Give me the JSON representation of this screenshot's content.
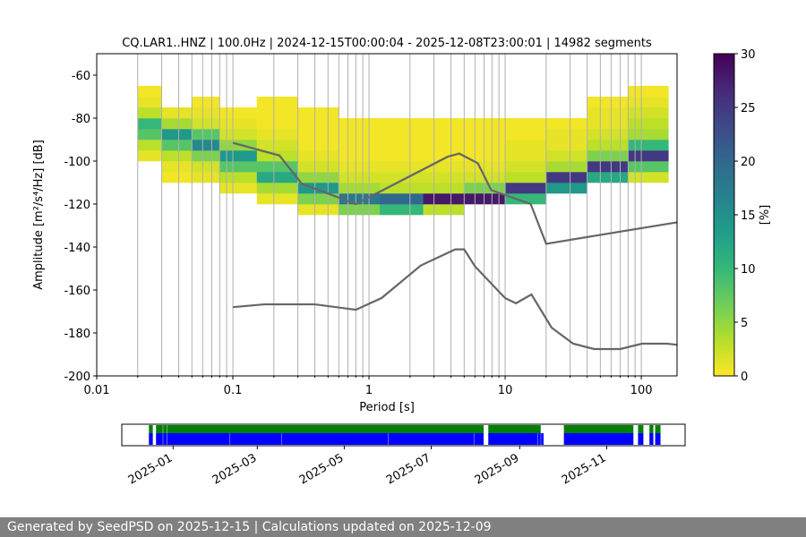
{
  "chart_data": [
    {
      "type": "heatmap",
      "title": "CQ.LAR1..HNZ | 100.0Hz | 2024-12-15T00:00:04 - 2025-12-08T23:00:01 | 14982 segments",
      "xlabel": "Period [s]",
      "ylabel": "Amplitude [m²/s⁴/Hz] [dB]",
      "log_x": true,
      "grid": "x",
      "xlim": [
        0.01,
        183
      ],
      "ylim": [
        -200,
        -50
      ],
      "xticks": [
        0.01,
        0.1,
        1,
        10,
        100
      ],
      "xminorticks": [
        0.02,
        0.03,
        0.04,
        0.05,
        0.06,
        0.07,
        0.08,
        0.09,
        0.2,
        0.3,
        0.4,
        0.5,
        0.6,
        0.7,
        0.8,
        0.9,
        2,
        3,
        4,
        5,
        6,
        7,
        8,
        9,
        20,
        30,
        40,
        50,
        60,
        70,
        80,
        90
      ],
      "yticks": [
        -200,
        -180,
        -160,
        -140,
        -120,
        -100,
        -80,
        -60
      ],
      "colormap": "viridis_r",
      "x_edges": [
        0.02,
        0.03,
        0.05,
        0.08,
        0.15,
        0.3,
        0.6,
        1.2,
        2.5,
        5,
        10,
        20,
        40,
        80,
        158
      ],
      "y_edges": [
        -125,
        -120,
        -115,
        -110,
        -105,
        -100,
        -95,
        -90,
        -85,
        -80,
        -75,
        -70,
        -65
      ],
      "z": [
        [
          null,
          null,
          null,
          null,
          null,
          1,
          6,
          10,
          3,
          null,
          null,
          null,
          null,
          null
        ],
        [
          null,
          null,
          null,
          null,
          1,
          6,
          18,
          20,
          28,
          28,
          10,
          null,
          null,
          null
        ],
        [
          null,
          null,
          null,
          1,
          4,
          14,
          4,
          3,
          3,
          6,
          25,
          14,
          null,
          null
        ],
        [
          null,
          0.5,
          1,
          3,
          12,
          5,
          2,
          2,
          2,
          2,
          3,
          25,
          12,
          2
        ],
        [
          null,
          1,
          2,
          8,
          8,
          2,
          1,
          1,
          1,
          1,
          2,
          4,
          25,
          8
        ],
        [
          1,
          3,
          6,
          14,
          3,
          1,
          0.5,
          0.5,
          0.5,
          0.5,
          1,
          2,
          6,
          25
        ],
        [
          3,
          8,
          16,
          5,
          2,
          0.5,
          0.5,
          0.5,
          0.5,
          0.5,
          1,
          1,
          3,
          10
        ],
        [
          8,
          14,
          8,
          2,
          1,
          0.5,
          0.5,
          0.5,
          0.5,
          0.5,
          0.5,
          1,
          2,
          4
        ],
        [
          10,
          4,
          2,
          1,
          0.5,
          0.5,
          0.5,
          0.5,
          0.5,
          0.5,
          0.5,
          0.5,
          1,
          3
        ],
        [
          3,
          1,
          1,
          0.5,
          0.5,
          0.5,
          null,
          null,
          null,
          null,
          null,
          null,
          1,
          2
        ],
        [
          1,
          null,
          0.5,
          null,
          0.5,
          null,
          null,
          null,
          null,
          null,
          null,
          null,
          0.5,
          1
        ],
        [
          0.5,
          null,
          null,
          null,
          null,
          null,
          null,
          null,
          null,
          null,
          null,
          null,
          null,
          0.5
        ]
      ],
      "colorbar": {
        "label": "[%]",
        "lim": [
          0,
          30
        ],
        "ticks": [
          0,
          5,
          10,
          15,
          20,
          25,
          30
        ]
      },
      "series": [
        {
          "color": "#666666",
          "x": [
            0.1,
            0.22,
            0.32,
            0.8,
            3.8,
            4.6,
            6.3,
            7.9,
            15.4,
            20,
            183
          ],
          "values": [
            -91.5,
            -97.4,
            -110.5,
            -120,
            -97.9,
            -96.5,
            -101,
            -113.5,
            -120,
            -138.5,
            -128.5
          ]
        },
        {
          "color": "#666666",
          "x": [
            0.1,
            0.17,
            0.4,
            0.8,
            1.24,
            2.4,
            4.3,
            5,
            6,
            10,
            12,
            15.6,
            21.9,
            31.6,
            45,
            70,
            101,
            154,
            183
          ],
          "values": [
            -168,
            -166.7,
            -166.7,
            -169.2,
            -163.7,
            -148.6,
            -141.1,
            -141.1,
            -149,
            -163.8,
            -166.2,
            -162.1,
            -177.5,
            -185,
            -187.5,
            -187.5,
            -185,
            -185,
            -185.5
          ]
        }
      ]
    },
    {
      "type": "timeline",
      "xlim": [
        "2024-11-26",
        "2025-12-26"
      ],
      "xticks": [
        "2025-01",
        "2025-03",
        "2025-05",
        "2025-07",
        "2025-09",
        "2025-11"
      ],
      "series": [
        {
          "color": "#008000",
          "start": [
            "2024-12-15",
            "2024-12-20",
            "2024-12-25",
            "2024-12-28",
            "2025-08-10",
            "2025-10-02",
            "2025-11-23",
            "2025-12-01",
            "2025-12-05"
          ],
          "end": [
            "2024-12-17",
            "2024-12-24",
            "2024-12-27",
            "2025-08-06",
            "2025-09-15",
            "2025-11-19",
            "2025-11-26",
            "2025-12-03",
            "2025-12-08"
          ]
        },
        {
          "color": "#0000ff",
          "start": [
            "2024-12-15",
            "2024-12-20",
            "2024-12-25",
            "2024-12-28",
            "2025-02-10",
            "2025-03-18",
            "2025-06-01",
            "2025-07-31",
            "2025-08-10",
            "2025-09-14",
            "2025-09-16",
            "2025-10-02",
            "2025-11-23",
            "2025-12-01",
            "2025-12-05"
          ],
          "end": [
            "2024-12-17",
            "2024-12-24",
            "2024-12-27",
            "2025-02-09",
            "2025-03-17",
            "2025-05-31",
            "2025-07-30",
            "2025-08-06",
            "2025-09-13",
            "2025-09-15",
            "2025-09-17",
            "2025-11-19",
            "2025-11-26",
            "2025-12-03",
            "2025-12-08"
          ]
        }
      ]
    }
  ],
  "footer": "Generated by SeedPSD on 2025-12-15 | Calculations updated on 2025-12-09"
}
